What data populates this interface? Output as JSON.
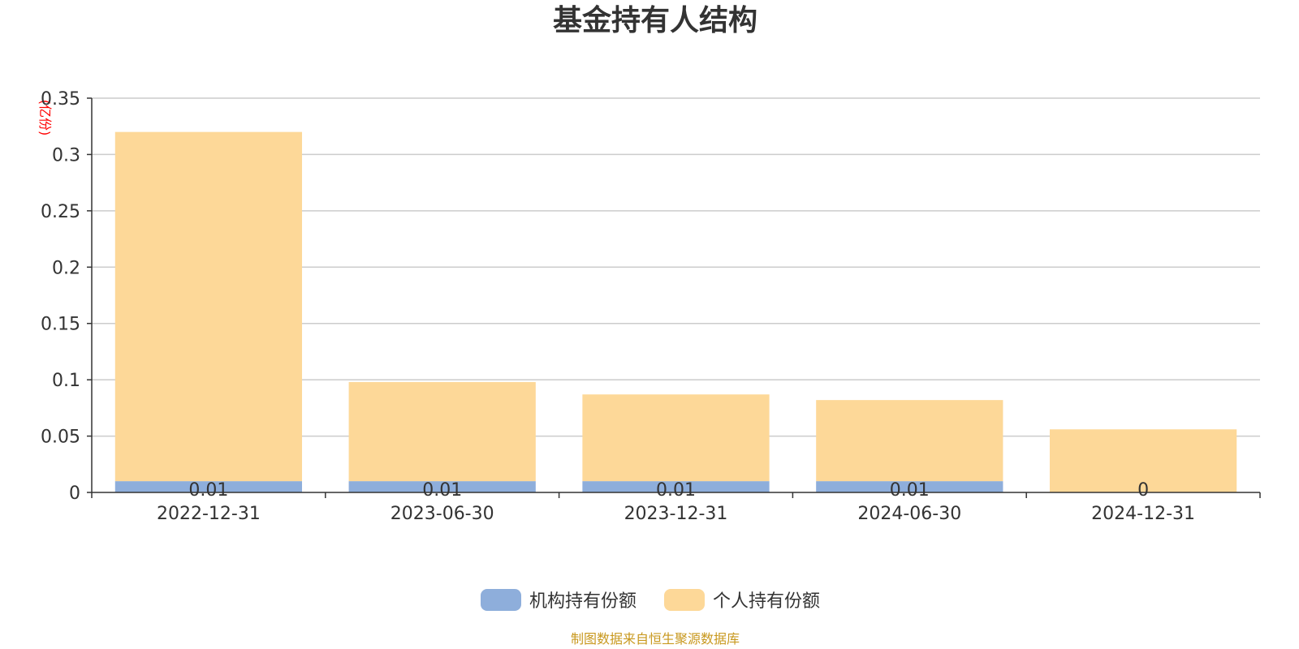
{
  "chart_data": {
    "type": "bar",
    "stacked": true,
    "title": "基金持有人结构",
    "unit": "(亿份)",
    "categories": [
      "2022-12-31",
      "2023-06-30",
      "2023-12-31",
      "2024-06-30",
      "2024-12-31"
    ],
    "series": [
      {
        "name": "机构持有份额",
        "color": "#8eaedb",
        "values": [
          0.01,
          0.01,
          0.01,
          0.01,
          0
        ],
        "labels": [
          "0.01",
          "0.01",
          "0.01",
          "0.01",
          "0"
        ]
      },
      {
        "name": "个人持有份额",
        "color": "#fdd898",
        "values": [
          0.31,
          0.088,
          0.077,
          0.072,
          0.056
        ]
      }
    ],
    "ylim": [
      0,
      0.35
    ],
    "yticks": [
      0,
      0.05,
      0.1,
      0.15,
      0.2,
      0.25,
      0.3,
      0.35
    ],
    "ytick_labels": [
      "0",
      "0.05",
      "0.1",
      "0.15",
      "0.2",
      "0.25",
      "0.3",
      "0.35"
    ],
    "grid": true,
    "legend_position": "bottom-center"
  },
  "source_note": "制图数据来自恒生聚源数据库"
}
